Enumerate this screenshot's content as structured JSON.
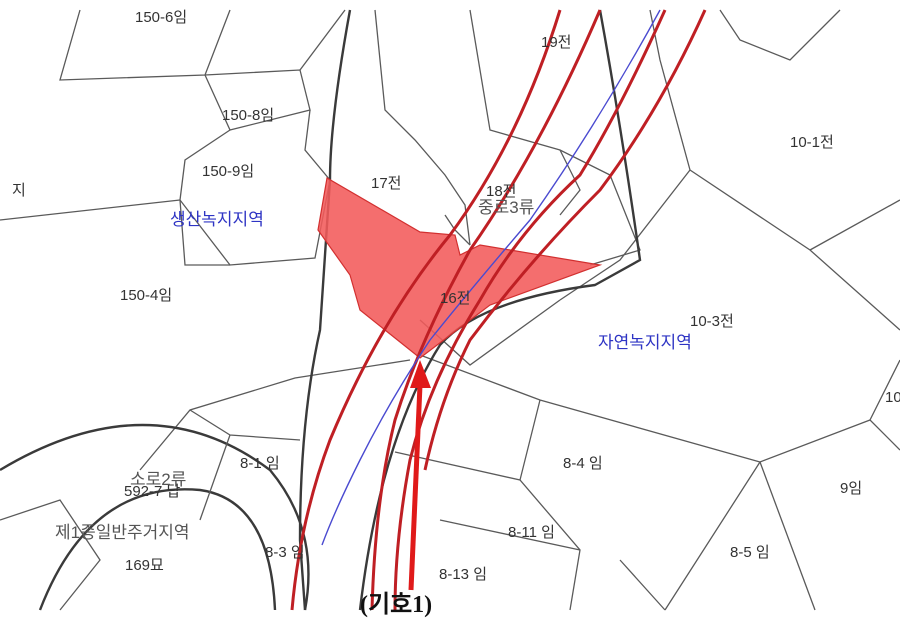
{
  "map": {
    "colors": {
      "highlight_fill": "#f25a5a",
      "road_edge": "#bf1f24",
      "center_line": "#4a4ad0",
      "zone_label": "#2e34c4",
      "arrow": "#e01a1a"
    },
    "parcels": {
      "p150_6": "150-6임",
      "p150_8": "150-8임",
      "p150_9": "150-9임",
      "p150_4": "150-4임",
      "p17": "17전",
      "p18": "18전",
      "p19": "19전",
      "p16": "16전",
      "p10_1": "10-1전",
      "p10_3": "10-3전",
      "p8_1": "8-1 임",
      "p8_4": "8-4 임",
      "p8_3": "8-3 임",
      "p8_11": "8-11 임",
      "p8_13": "8-13 임",
      "p8_5": "8-5 임",
      "p9": "9임",
      "p169": "169묘",
      "p592": "592-7 답",
      "edge_left": "지",
      "edge_right": "10"
    },
    "zones": {
      "production_green": "생산녹지지역",
      "natural_green": "자연녹지지역",
      "road_class": "중로3류",
      "minor_road": "소로2류",
      "residential": "제1종일반주거지역"
    },
    "caption": "(기호1)"
  }
}
